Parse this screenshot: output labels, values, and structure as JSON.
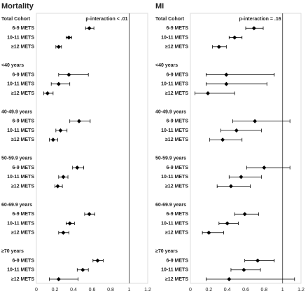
{
  "chart_data": [
    {
      "type": "forest",
      "title": "Mortality",
      "annotation": "p-interaction < .01",
      "categories": [
        "Total Cohort",
        "6-9 METS",
        "10-11 METS",
        "≥12 METS",
        "<40 years",
        "6-9 METS",
        "10-11 METS",
        "≥12 METS",
        "40-49.9 years",
        "6-9 METS",
        "10-11 METS",
        "≥12 METS",
        "50-59.9 years",
        "6-9 METS",
        "10-11 METS",
        "≥12 METS",
        "60-69.9 years",
        "6-9 METS",
        "10-11 METS",
        "≥12 METS",
        "≥70 years",
        "6-9 METS",
        "10-11 METS",
        "≥12 METS"
      ],
      "values": [
        null,
        0.57,
        0.35,
        0.24,
        null,
        0.35,
        0.24,
        0.12,
        null,
        0.46,
        0.26,
        0.18,
        null,
        0.44,
        0.29,
        0.23,
        null,
        0.57,
        0.36,
        0.29,
        null,
        0.66,
        0.5,
        0.24
      ],
      "lower": [
        null,
        0.53,
        0.32,
        0.21,
        null,
        0.24,
        0.16,
        0.08,
        null,
        0.36,
        0.21,
        0.14,
        null,
        0.39,
        0.24,
        0.2,
        null,
        0.52,
        0.32,
        0.24,
        null,
        0.61,
        0.44,
        0.14
      ],
      "upper": [
        null,
        0.62,
        0.38,
        0.27,
        null,
        0.56,
        0.36,
        0.18,
        null,
        0.58,
        0.33,
        0.23,
        null,
        0.51,
        0.34,
        0.28,
        null,
        0.63,
        0.41,
        0.35,
        null,
        0.72,
        0.56,
        0.45
      ],
      "xlim": [
        0,
        1.2
      ],
      "xticks": [
        0,
        0.2,
        0.4,
        0.6,
        0.8,
        1,
        1.2
      ],
      "reference_line": 1,
      "color": "#000000"
    },
    {
      "type": "forest",
      "title": "MI",
      "annotation": "p-interaction = .16",
      "categories": [
        "Total Cohort",
        "6-9 METS",
        "10-11 METS",
        "≥12 METS",
        "<40 years",
        "6-9 METS",
        "10-11 METS",
        "≥12 METS",
        "40-49.9 years",
        "6-9 METS",
        "10-11 METS",
        "≥12 METS",
        "50-59.9 years",
        "6-9 METS",
        "10-11 METS",
        "≥12 METS",
        "60-69.9 years",
        "6-9 METS",
        "10-11 METS",
        "≥12 METS",
        "≥70 years",
        "6-9 METS",
        "10-11 METS",
        "≥12 METS"
      ],
      "values": [
        null,
        0.69,
        0.48,
        0.31,
        null,
        0.39,
        0.39,
        0.19,
        null,
        0.7,
        0.5,
        0.35,
        null,
        0.8,
        0.55,
        0.44,
        null,
        0.59,
        0.4,
        0.2,
        null,
        0.73,
        0.58,
        0.42
      ],
      "lower": [
        null,
        0.6,
        0.42,
        0.24,
        null,
        0.17,
        0.17,
        0.05,
        null,
        0.46,
        0.33,
        0.21,
        null,
        0.61,
        0.42,
        0.29,
        null,
        0.48,
        0.31,
        0.13,
        null,
        0.59,
        0.44,
        0.17
      ],
      "upper": [
        null,
        0.79,
        0.56,
        0.39,
        null,
        0.91,
        0.83,
        0.48,
        null,
        1.08,
        0.77,
        0.56,
        null,
        1.08,
        0.77,
        0.65,
        null,
        0.74,
        0.52,
        0.36,
        null,
        0.91,
        0.76,
        1.13
      ],
      "xlim": [
        0,
        1.2
      ],
      "xticks": [
        0,
        0.2,
        0.4,
        0.6,
        0.8,
        1,
        1.2
      ],
      "reference_line": 1,
      "color": "#000000"
    }
  ]
}
